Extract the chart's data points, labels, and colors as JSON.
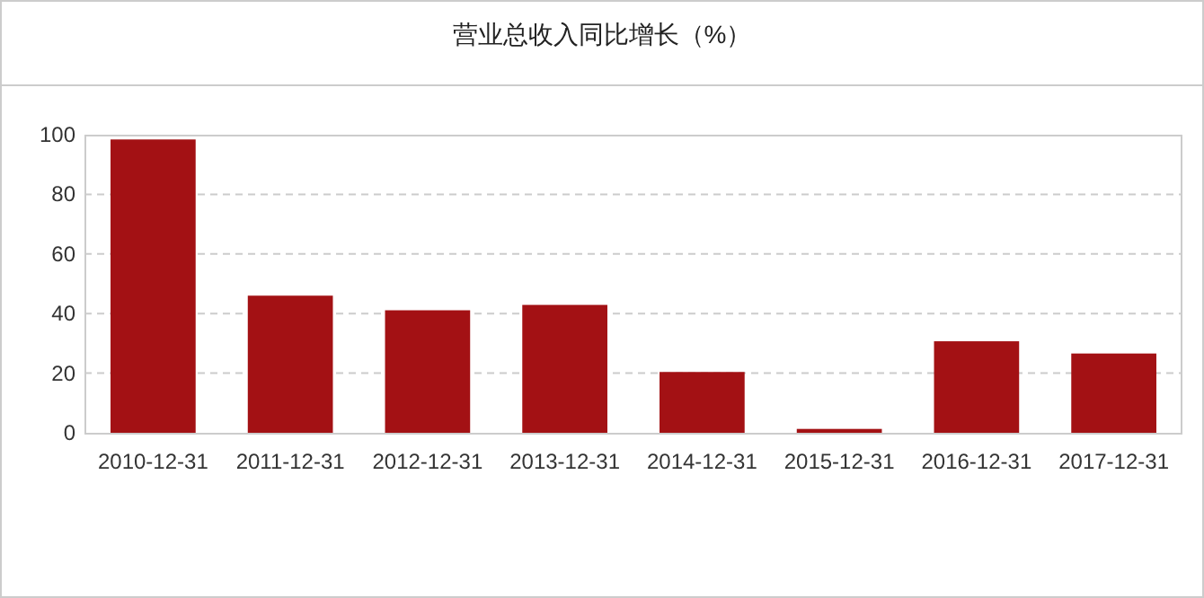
{
  "chart_data": {
    "type": "bar",
    "title": "营业总收入同比增长（%）",
    "categories": [
      "2010-12-31",
      "2011-12-31",
      "2012-12-31",
      "2013-12-31",
      "2014-12-31",
      "2015-12-31",
      "2016-12-31",
      "2017-12-31"
    ],
    "values": [
      98.4,
      46,
      41.1,
      42.9,
      20.4,
      1.3,
      30.7,
      26.6
    ],
    "color": "#a31114",
    "ylim": [
      0,
      100
    ],
    "yticks": [
      0,
      20,
      40,
      60,
      80,
      100
    ],
    "grid": "y"
  }
}
